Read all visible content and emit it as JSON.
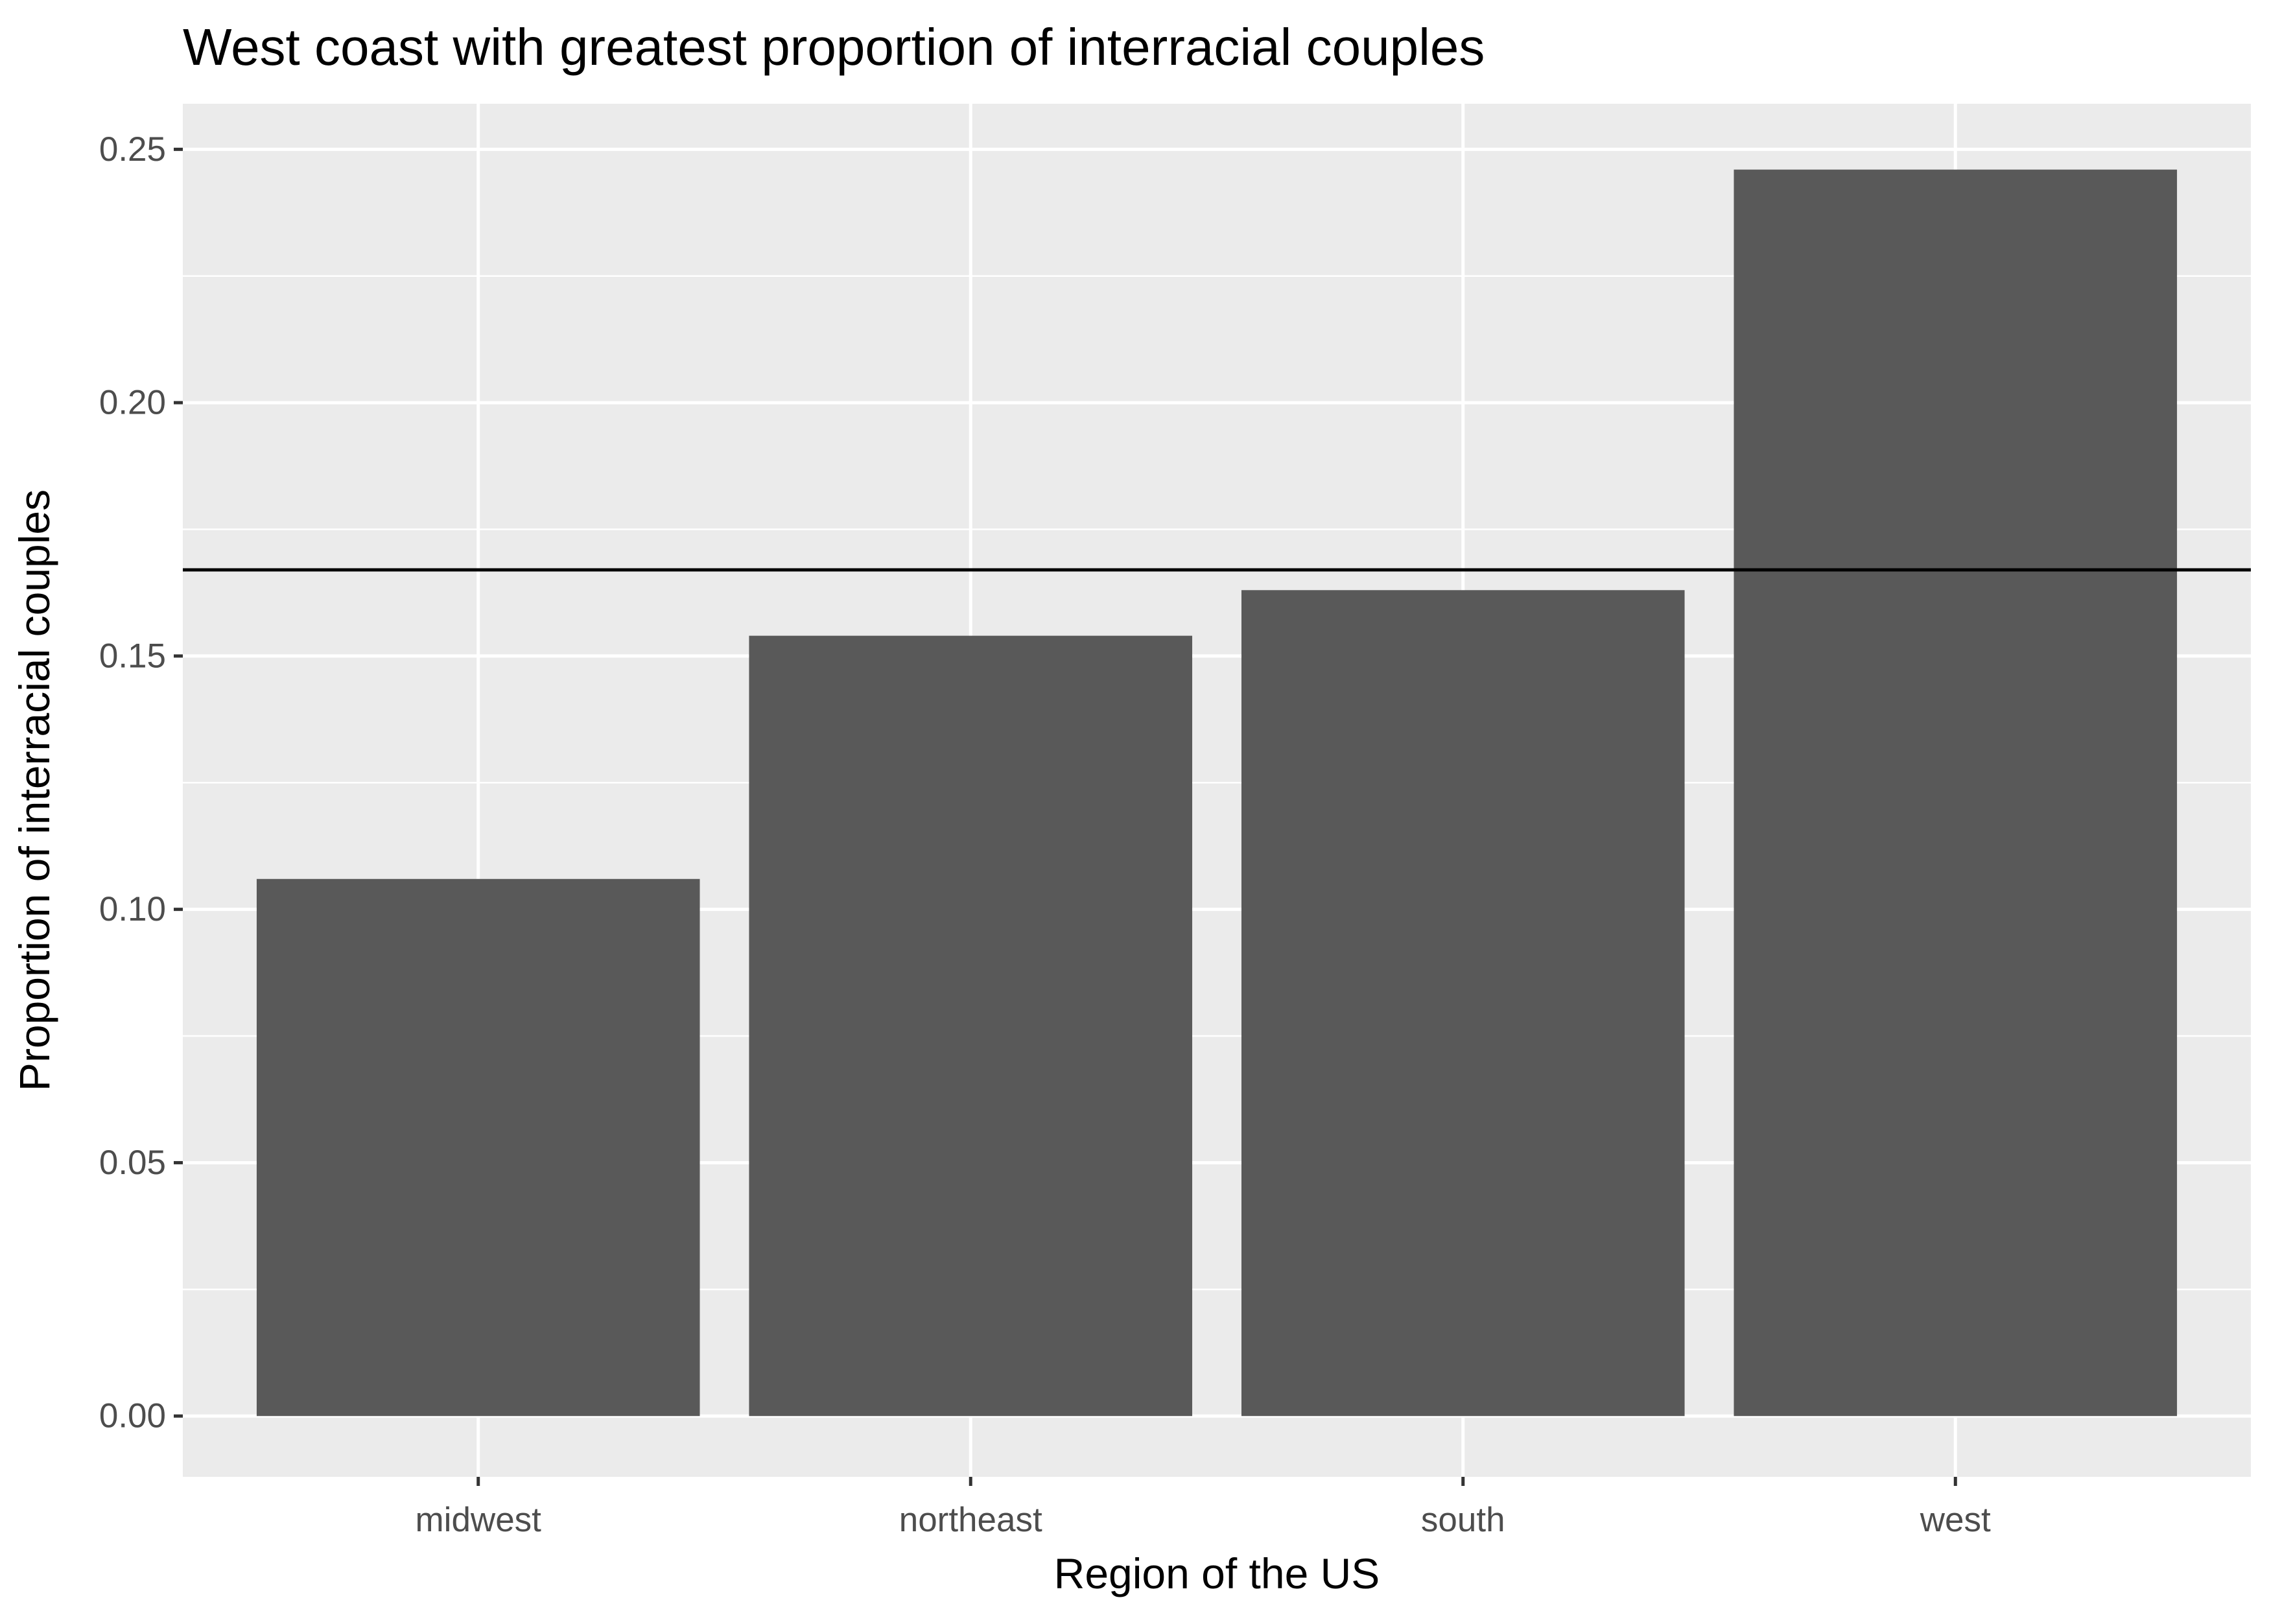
{
  "chart_data": {
    "type": "bar",
    "title": "West coast with greatest proportion of interracial couples",
    "xlabel": "Region of the US",
    "ylabel": "Proportion of interracial couples",
    "categories": [
      "midwest",
      "northeast",
      "south",
      "west"
    ],
    "values": [
      0.106,
      0.154,
      0.163,
      0.246
    ],
    "reference_line": 0.167,
    "ylim": [
      -0.012,
      0.259
    ],
    "yticks": [
      0.0,
      0.05,
      0.1,
      0.15,
      0.2,
      0.25
    ],
    "ytick_labels": [
      "0.00",
      "0.05",
      "0.10",
      "0.15",
      "0.20",
      "0.25"
    ],
    "grid": true,
    "colors": {
      "panel_background": "#ebebeb",
      "grid": "#ffffff",
      "bar": "#595959",
      "reference_line": "#000000",
      "tick_text": "#4d4d4d",
      "tick_mark": "#333333"
    }
  }
}
